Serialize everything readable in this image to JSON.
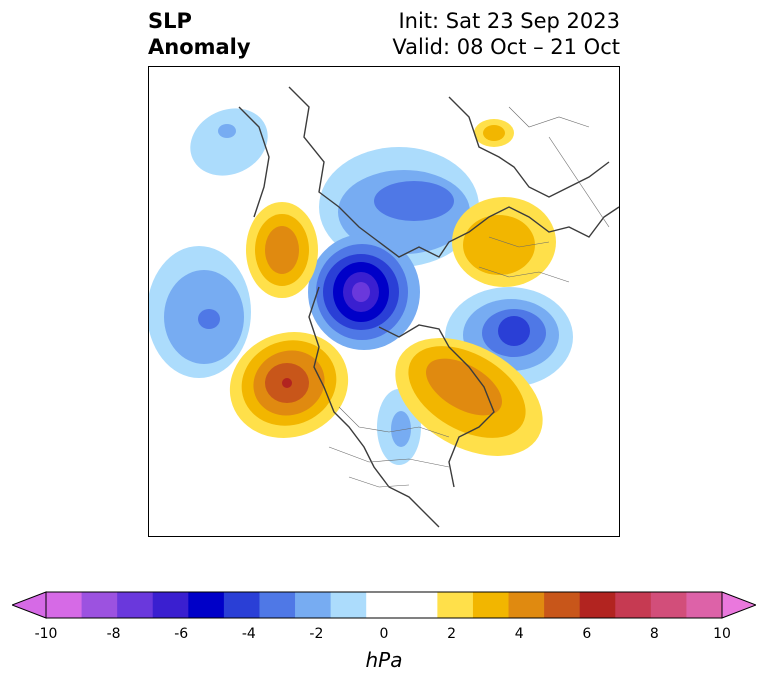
{
  "header": {
    "title_line1": "SLP",
    "title_line2": "Anomaly",
    "init": "Init: Sat 23 Sep 2023",
    "valid": "Valid: 08 Oct – 21 Oct"
  },
  "colorbar": {
    "unit": "hPa",
    "ticks": [
      "-10",
      "-8",
      "-6",
      "-4",
      "-2",
      "0",
      "2",
      "4",
      "6",
      "8",
      "10"
    ],
    "tick_values": [
      -10,
      -8,
      -6,
      -4,
      -2,
      0,
      2,
      4,
      6,
      8,
      10
    ],
    "colors": [
      "#d66ae6",
      "#9c52e0",
      "#6a38dc",
      "#3a1fd0",
      "#0000c8",
      "#2a3fd6",
      "#4f78e6",
      "#77acf2",
      "#acdcfc",
      "#ffffff",
      "#ffffff",
      "#ffe04a",
      "#f2b600",
      "#e08a10",
      "#c8561a",
      "#b22420",
      "#c63a52",
      "#d24e7a",
      "#dd62a8"
    ],
    "extend_min_color": "#d66ae6",
    "extend_max_color": "#ea78dd"
  },
  "map": {
    "projection": "north-polar-stereographic",
    "features": [
      {
        "name": "aleutian-pacific-low",
        "sign": "negative"
      },
      {
        "name": "arctic-low",
        "sign": "negative",
        "peak": "strong"
      },
      {
        "name": "siberian-low",
        "sign": "negative"
      },
      {
        "name": "north-atlantic-low",
        "sign": "negative"
      },
      {
        "name": "north-pacific-high",
        "sign": "positive",
        "peak": "strong"
      },
      {
        "name": "east-asia-high",
        "sign": "positive"
      },
      {
        "name": "eastern-canada-high",
        "sign": "positive"
      },
      {
        "name": "scandinavian-high",
        "sign": "positive"
      }
    ]
  }
}
